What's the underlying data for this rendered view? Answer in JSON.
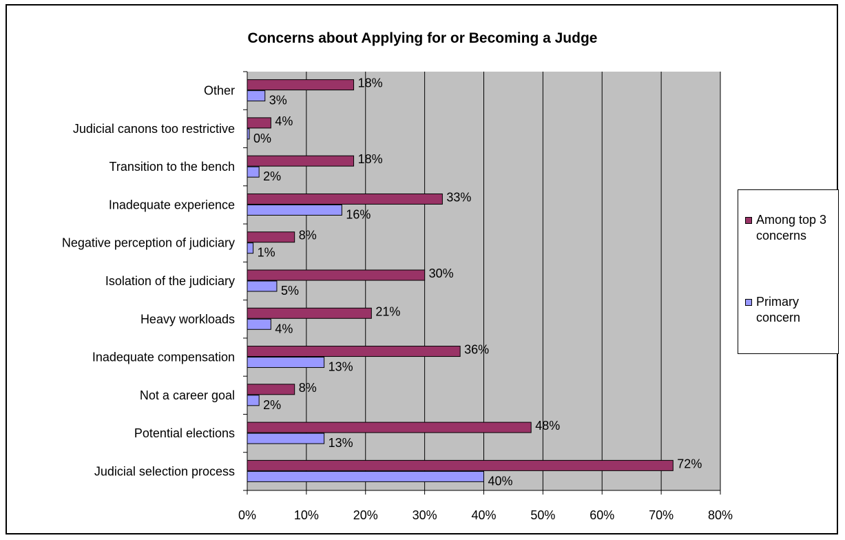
{
  "chart_data": {
    "type": "bar",
    "orientation": "horizontal",
    "title": "Concerns about Applying for or Becoming a Judge",
    "xlabel": "",
    "ylabel": "",
    "xlim": [
      0,
      80
    ],
    "x_ticks": [
      "0%",
      "10%",
      "20%",
      "30%",
      "40%",
      "50%",
      "60%",
      "70%",
      "80%"
    ],
    "grid": true,
    "legend_position": "right",
    "categories": [
      "Other",
      "Judicial canons too restrictive",
      "Transition to the bench",
      "Inadequate experience",
      "Negative perception of judiciary",
      "Isolation of the judiciary",
      "Heavy workloads",
      "Inadequate compensation",
      "Not a career goal",
      "Potential elections",
      "Judicial selection process"
    ],
    "series": [
      {
        "name": "Among top 3 concerns",
        "color": "#993366",
        "values": [
          18,
          4,
          18,
          33,
          8,
          30,
          21,
          36,
          8,
          48,
          72
        ],
        "labels": [
          "18%",
          "4%",
          "18%",
          "33%",
          "8%",
          "30%",
          "21%",
          "36%",
          "8%",
          "48%",
          "72%"
        ]
      },
      {
        "name": "Primary concern",
        "color": "#9999ff",
        "values": [
          3,
          0,
          2,
          16,
          1,
          5,
          4,
          13,
          2,
          13,
          40
        ],
        "labels": [
          "3%",
          "0%",
          "2%",
          "16%",
          "1%",
          "5%",
          "4%",
          "13%",
          "2%",
          "13%",
          "40%"
        ]
      }
    ]
  },
  "legend": {
    "items": [
      "Among top 3 concerns",
      "Primary concern"
    ]
  }
}
